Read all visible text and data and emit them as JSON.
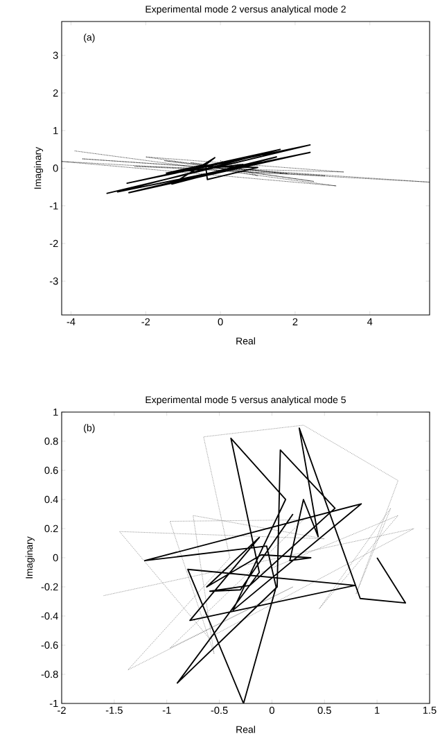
{
  "chart_data": [
    {
      "type": "line",
      "title": "Experimental mode 2 versus analytical mode 2",
      "xlabel": "Real",
      "ylabel": "Imaginary",
      "annotations": [
        "(a)"
      ],
      "xlim": [
        -4.25,
        5.6
      ],
      "ylim": [
        -3.9,
        3.9
      ],
      "xticks": [
        -4,
        -2,
        0,
        2,
        4
      ],
      "yticks": [
        -3,
        -2,
        -1,
        0,
        1,
        2,
        3
      ],
      "series": [
        {
          "color": "#000000",
          "line_style": "dotted",
          "x": [
            -3.9,
            3.1,
            -4.25,
            5.6,
            -3.7,
            2.8,
            -2.3,
            3.3,
            -2.0,
            2.5,
            -1.5,
            1.8,
            -0.8,
            1.0,
            0.0
          ],
          "values": [
            0.46,
            -0.47,
            0.18,
            -0.37,
            0.25,
            -0.2,
            0.05,
            -0.1,
            0.3,
            -0.35,
            0.2,
            -0.15,
            0.15,
            -0.2,
            0.2
          ]
        },
        {
          "color": "#000000",
          "line_style": "solid",
          "x": [
            -3.05,
            2.4,
            -2.5,
            1.6,
            -2.75,
            2.4,
            -2.45,
            1.5,
            -1.3,
            -0.15,
            -0.45,
            1.0,
            -0.35,
            -0.4,
            -1.45,
            0.6,
            0.0
          ],
          "values": [
            -0.67,
            0.62,
            -0.4,
            0.5,
            -0.63,
            0.42,
            -0.65,
            0.3,
            -0.42,
            0.28,
            0.05,
            0.02,
            -0.3,
            0.1,
            -0.13,
            0.1,
            -0.1
          ]
        }
      ]
    },
    {
      "type": "line",
      "title": "Experimental mode 5 versus analytical mode 5",
      "xlabel": "Real",
      "ylabel": "Imaginary",
      "annotations": [
        "(b)"
      ],
      "xlim": [
        -2,
        1.5
      ],
      "ylim": [
        -1,
        1
      ],
      "xticks": [
        -2,
        -1.5,
        -1,
        -0.5,
        0,
        0.5,
        1,
        1.5
      ],
      "yticks": [
        -1,
        -0.8,
        -0.6,
        -0.4,
        -0.2,
        0,
        0.2,
        0.4,
        0.6,
        0.8,
        1
      ],
      "series": [
        {
          "color": "#777777",
          "line_style": "dotted",
          "x": [
            -1.6,
            1.35,
            -0.6,
            -1.45,
            0.5,
            -0.75,
            -0.55,
            -0.97,
            0.3,
            -0.97,
            0.2,
            -1.37,
            -0.4,
            -0.65,
            0.3,
            1.2,
            0.8,
            1.13,
            0.45,
            1.2,
            -0.1
          ],
          "values": [
            -0.26,
            0.2,
            -0.55,
            0.18,
            0.13,
            0.29,
            -0.66,
            0.25,
            0.26,
            -0.62,
            -0.2,
            -0.77,
            0.0,
            0.83,
            0.91,
            0.53,
            -0.25,
            0.34,
            -0.35,
            0.29,
            -0.1
          ]
        },
        {
          "color": "#000000",
          "line_style": "solid",
          "x": [
            1.0,
            1.27,
            0.84,
            0.26,
            0.44,
            0.3,
            0.17,
            0.37,
            -0.1,
            -0.62,
            -0.12,
            -0.78,
            0.79,
            -0.8,
            -0.27,
            0.04,
            -0.05,
            -1.21,
            0.85,
            -0.37,
            0.13,
            -0.39,
            -0.12,
            -0.9,
            0.05,
            0.08,
            0.6,
            -0.21,
            -0.59,
            -0.3,
            0.2
          ],
          "values": [
            0.0,
            -0.31,
            -0.28,
            0.89,
            0.145,
            0.4,
            -0.02,
            0.0,
            0.02,
            -0.2,
            0.14,
            -0.43,
            -0.19,
            -0.08,
            -1.0,
            -0.2,
            0.08,
            -0.02,
            0.37,
            -0.36,
            0.4,
            0.82,
            -0.1,
            -0.86,
            -0.2,
            0.74,
            0.34,
            -0.19,
            -0.23,
            -0.22,
            0.3
          ]
        }
      ]
    }
  ]
}
